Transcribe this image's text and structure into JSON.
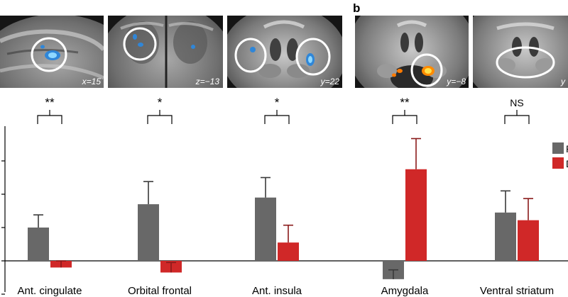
{
  "panel_b_label": "b",
  "brain_slices": [
    {
      "coord": "x=15"
    },
    {
      "coord": "z=−13"
    },
    {
      "coord": "y=22"
    },
    {
      "coord": "y=−8"
    },
    {
      "coord": "y"
    }
  ],
  "colors": {
    "gray": "#686868",
    "red": "#d02828",
    "dark_red": "#8a1a1a",
    "blue": "#5ab4ee",
    "hot": "#ffcc11"
  },
  "chart_data": {
    "type": "bar",
    "title": "",
    "xlabel": "",
    "ylabel": "",
    "ylim": [
      -1.1,
      4
    ],
    "categories": [
      "Ant. cingulate",
      "Orbital frontal",
      "Ant. insula",
      "Amygdala",
      "Ventral striatum"
    ],
    "significance": [
      "**",
      "*",
      "*",
      "**",
      "NS"
    ],
    "legend": [
      "P",
      "D"
    ],
    "series": [
      {
        "name": "P",
        "color": "#686868",
        "values": [
          1.0,
          1.7,
          1.9,
          -0.55,
          1.45
        ],
        "errors": [
          0.38,
          0.68,
          0.6,
          0.28,
          0.65
        ]
      },
      {
        "name": "D",
        "color": "#d02828",
        "values": [
          -0.2,
          -0.35,
          0.55,
          2.75,
          1.22
        ],
        "errors": [
          0.2,
          0.3,
          0.52,
          0.92,
          0.65
        ]
      }
    ]
  }
}
